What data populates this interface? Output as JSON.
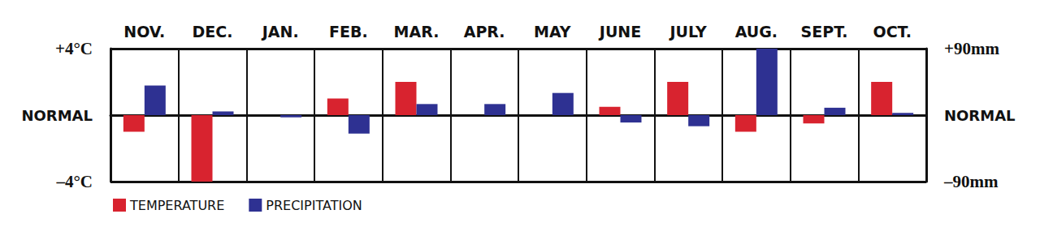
{
  "chart_data": {
    "type": "bar",
    "categories": [
      "NOV.",
      "DEC.",
      "JAN.",
      "FEB.",
      "MAR.",
      "APR.",
      "MAY",
      "JUNE",
      "JULY",
      "AUG.",
      "SEPT.",
      "OCT."
    ],
    "series": [
      {
        "name": "TEMPERATURE",
        "color": "#d8232f",
        "values": [
          -1.0,
          -4.0,
          0,
          1.0,
          2.0,
          0,
          0,
          0.5,
          2.0,
          -1.0,
          -0.5,
          2.0
        ]
      },
      {
        "name": "PRECIPITATION",
        "color": "#2e3192",
        "axis": "y2",
        "values": [
          40,
          5,
          -3,
          -25,
          15,
          15,
          30,
          -10,
          -15,
          90,
          10,
          3
        ]
      }
    ],
    "ylim": [
      -4,
      4
    ],
    "yticks": [
      {
        "value": -4,
        "label": "–4°C"
      },
      {
        "value": 0,
        "label": "NORMAL"
      },
      {
        "value": 4,
        "label": "+4°C"
      }
    ],
    "y2lim": [
      -90,
      90
    ],
    "y2ticks": [
      {
        "value": -90,
        "label": "–90mm"
      },
      {
        "value": 0,
        "label": "NORMAL"
      },
      {
        "value": 90,
        "label": "+90mm"
      }
    ],
    "grid": true,
    "legend": "lower left"
  }
}
